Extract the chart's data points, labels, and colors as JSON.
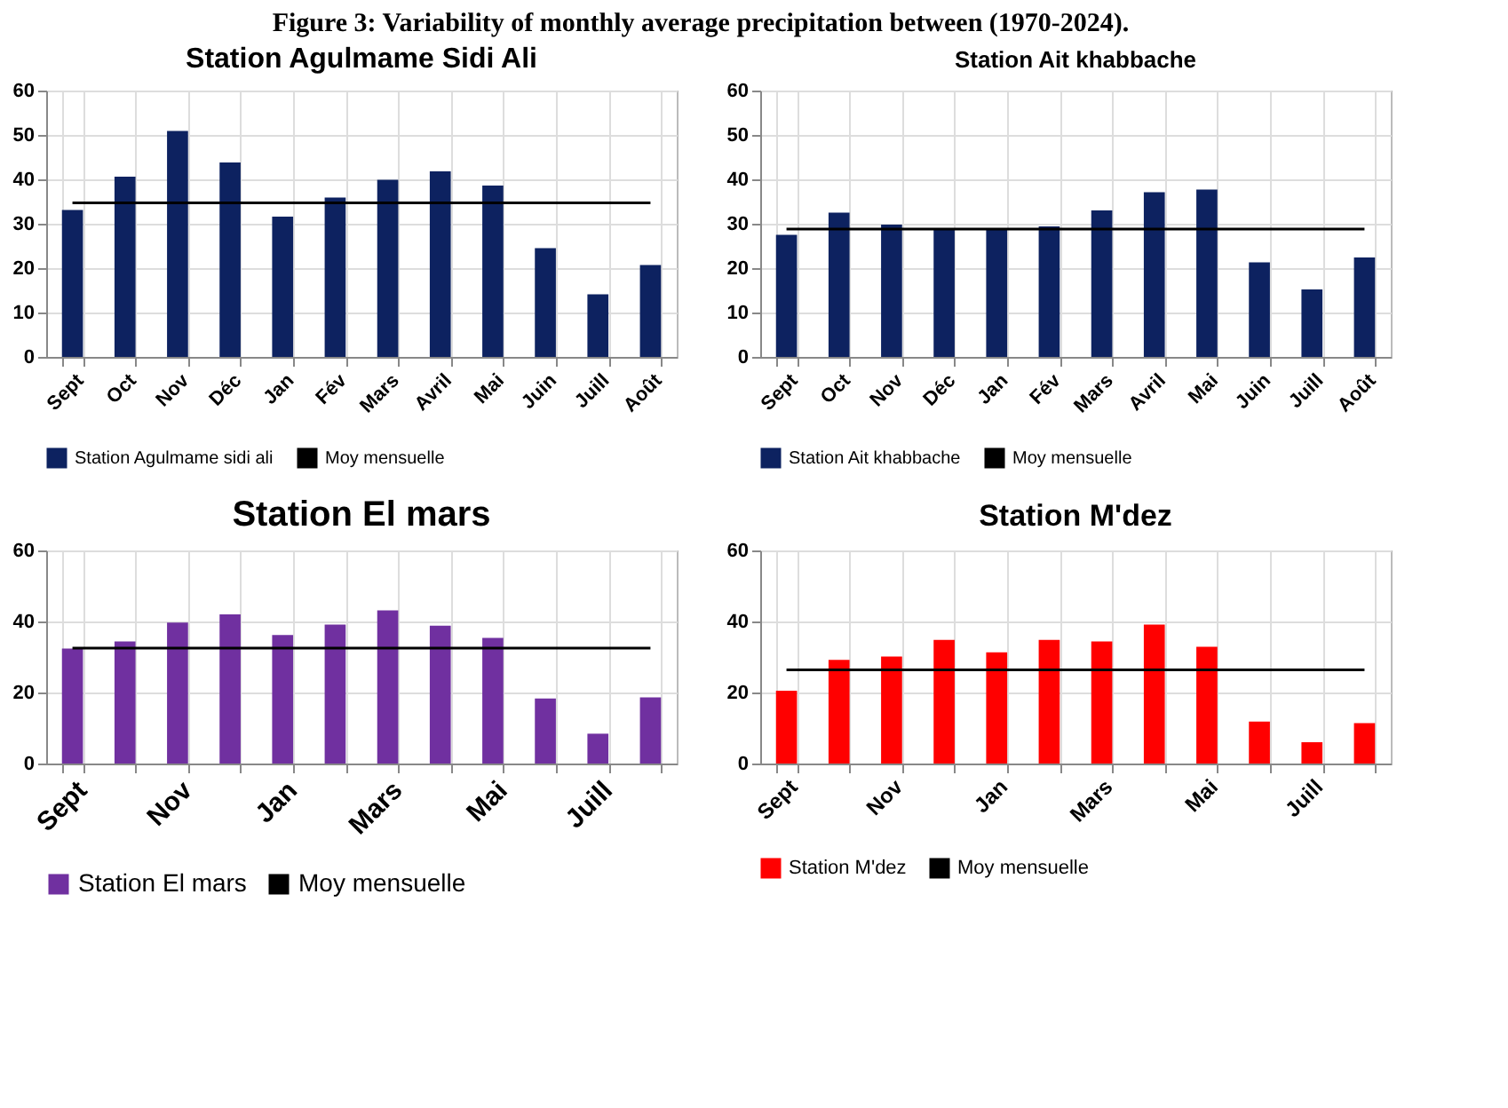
{
  "chart_data": [
    {
      "type": "bar",
      "title": "Station Agulmame Sidi Ali",
      "annotations": [
        "Figure 3: Variability of monthly average precipitation between (1970-2024)."
      ],
      "categories": [
        "Sept",
        "Oct",
        "Nov",
        "Déc",
        "Jan",
        "Fév",
        "Mars",
        "Avril",
        "Mai",
        "Juin",
        "Juill",
        "Août"
      ],
      "series": [
        {
          "name": "Station Agulmame sidi ali",
          "color": "#0d2260",
          "values": [
            33.1,
            40.6,
            50.9,
            43.8,
            31.6,
            35.9,
            39.9,
            41.8,
            38.6,
            24.5,
            14.1,
            20.7
          ]
        },
        {
          "name": "Moy mensuelle",
          "type": "line",
          "color": "#000000",
          "values": [
            34.7,
            34.7,
            34.7,
            34.7,
            34.7,
            34.7,
            34.7,
            34.7,
            34.7,
            34.7,
            34.7,
            34.7
          ]
        }
      ],
      "ylim": [
        0,
        60
      ],
      "yticks": [
        0,
        10,
        20,
        30,
        40,
        50,
        60
      ],
      "grid": true,
      "legend": "bottom"
    },
    {
      "type": "bar",
      "title": "Station Ait khabbache",
      "categories": [
        "Sept",
        "Oct",
        "Nov",
        "Déc",
        "Jan",
        "Fév",
        "Mars",
        "Avril",
        "Mai",
        "Juin",
        "Juill",
        "Août"
      ],
      "series": [
        {
          "name": "Station Ait khabbache",
          "color": "#0d2260",
          "values": [
            27.5,
            32.5,
            29.8,
            29.0,
            29.0,
            29.4,
            33.0,
            37.1,
            37.7,
            21.3,
            15.2,
            22.4
          ]
        },
        {
          "name": "Moy mensuelle",
          "type": "line",
          "color": "#000000",
          "values": [
            28.8,
            28.8,
            28.8,
            28.8,
            28.8,
            28.8,
            28.8,
            28.8,
            28.8,
            28.8,
            28.8,
            28.8
          ]
        }
      ],
      "ylim": [
        0,
        60
      ],
      "yticks": [
        0,
        10,
        20,
        30,
        40,
        50,
        60
      ],
      "grid": true,
      "legend": "bottom"
    },
    {
      "type": "bar",
      "title": "Station El mars",
      "categories": [
        "Sept",
        null,
        "Nov",
        null,
        "Jan",
        null,
        "Mars",
        null,
        "Mai",
        null,
        "Juill",
        null
      ],
      "series": [
        {
          "name": "Station El mars",
          "color": "#7030a0",
          "values": [
            32.4,
            34.4,
            39.7,
            42.0,
            36.2,
            39.1,
            43.1,
            38.8,
            35.4,
            18.3,
            8.4,
            18.6
          ]
        },
        {
          "name": "Moy mensuelle",
          "type": "line",
          "color": "#000000",
          "values": [
            32.5,
            32.5,
            32.5,
            32.5,
            32.5,
            32.5,
            32.5,
            32.5,
            32.5,
            32.5,
            32.5,
            32.5
          ]
        }
      ],
      "ylim": [
        0,
        60
      ],
      "yticks": [
        0,
        20,
        40,
        60
      ],
      "grid": true,
      "legend": "bottom"
    },
    {
      "type": "bar",
      "title": "Station M'dez",
      "categories": [
        "Sept",
        null,
        "Nov",
        null,
        "Jan",
        null,
        "Mars",
        null,
        "Mai",
        null,
        "Juill",
        null
      ],
      "series": [
        {
          "name": "Station M'dez",
          "color": "#ff0000",
          "values": [
            20.5,
            29.2,
            30.1,
            34.8,
            31.3,
            34.8,
            34.4,
            39.1,
            32.9,
            11.8,
            6.0,
            11.4
          ]
        },
        {
          "name": "Moy mensuelle",
          "type": "line",
          "color": "#000000",
          "values": [
            26.4,
            26.4,
            26.4,
            26.4,
            26.4,
            26.4,
            26.4,
            26.4,
            26.4,
            26.4,
            26.4,
            26.4
          ]
        }
      ],
      "ylim": [
        0,
        60
      ],
      "yticks": [
        0,
        20,
        40,
        60
      ],
      "grid": true,
      "legend": "bottom"
    }
  ]
}
